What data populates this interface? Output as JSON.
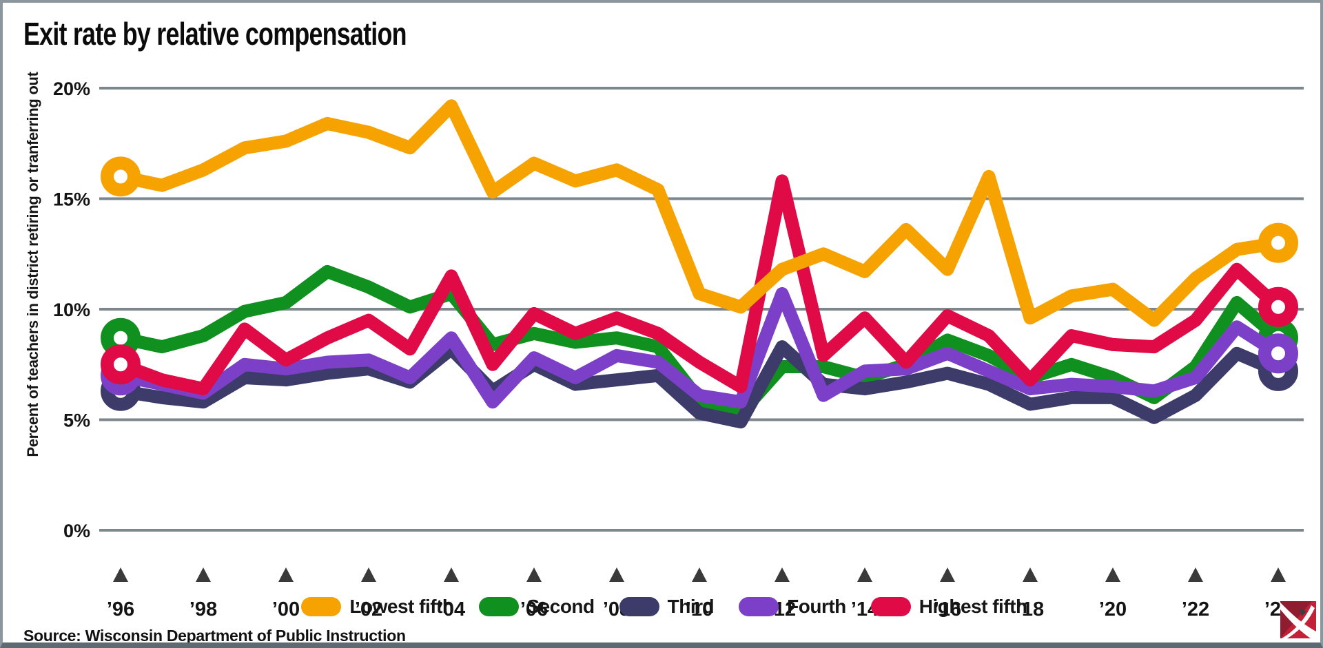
{
  "source": "Source: Wisconsin Department of Public Instruction",
  "colors": {
    "background": "#FFFFFF",
    "grid": "#7B878C",
    "tick_marker": "#3A3A3A",
    "text": "#141414",
    "frame": "#8C979D",
    "frame_bottom": "#5E6A72"
  },
  "legend_labels": [
    "Lowest fifth",
    "Second",
    "Third",
    "Fourth",
    "Highest fifth"
  ],
  "logo": {
    "name": "red-pickaxe-logo",
    "bright_red": "#C42038",
    "dark_red": "#8F1D2F",
    "pick_dark": "#3E3E42",
    "white": "#FFFFFF"
  },
  "chart_data": {
    "type": "line",
    "title": "Exit rate by relative compensation",
    "ylabel": "Percent of teachers in district retiring or tranferring out",
    "xlabel": "",
    "ylim": [
      0,
      20
    ],
    "grid": true,
    "legend_position": "bottom",
    "markers": "open-circle-at-series-endpoints",
    "yticks": [
      {
        "v": 0,
        "label": "0%"
      },
      {
        "v": 5,
        "label": "5%"
      },
      {
        "v": 10,
        "label": "10%"
      },
      {
        "v": 15,
        "label": "15%"
      },
      {
        "v": 20,
        "label": "20%"
      }
    ],
    "x_years": [
      1996,
      1997,
      1998,
      1999,
      2000,
      2001,
      2002,
      2003,
      2004,
      2005,
      2006,
      2007,
      2008,
      2009,
      2010,
      2011,
      2012,
      2013,
      2014,
      2015,
      2016,
      2017,
      2018,
      2019,
      2020,
      2021,
      2022,
      2023,
      2024
    ],
    "xticks": [
      {
        "year": 1996,
        "label": "’96"
      },
      {
        "year": 1998,
        "label": "’98"
      },
      {
        "year": 2000,
        "label": "’00"
      },
      {
        "year": 2002,
        "label": "’02"
      },
      {
        "year": 2004,
        "label": "’04"
      },
      {
        "year": 2006,
        "label": "’06"
      },
      {
        "year": 2008,
        "label": "’08"
      },
      {
        "year": 2010,
        "label": "’10"
      },
      {
        "year": 2012,
        "label": "’12"
      },
      {
        "year": 2014,
        "label": "’14"
      },
      {
        "year": 2016,
        "label": "’16"
      },
      {
        "year": 2018,
        "label": "’18"
      },
      {
        "year": 2020,
        "label": "’20"
      },
      {
        "year": 2022,
        "label": "’22"
      },
      {
        "year": 2024,
        "label": "’24"
      }
    ],
    "series": [
      {
        "name": "Second",
        "color": "#10911F",
        "z": 1,
        "end_rings": true,
        "values": [
          8.7,
          8.3,
          8.8,
          9.9,
          10.3,
          11.7,
          11.0,
          10.1,
          10.7,
          8.4,
          8.9,
          8.5,
          8.7,
          8.3,
          5.9,
          5.3,
          7.4,
          7.4,
          6.9,
          7.5,
          8.6,
          7.9,
          6.9,
          7.5,
          6.9,
          6.0,
          7.4,
          10.3,
          8.7
        ]
      },
      {
        "name": "Third",
        "color": "#3C3B69",
        "z": 2,
        "end_rings": true,
        "values": [
          6.3,
          6.0,
          5.8,
          6.9,
          6.8,
          7.1,
          7.3,
          6.7,
          8.2,
          6.3,
          7.5,
          6.6,
          6.8,
          7.0,
          5.3,
          4.9,
          8.3,
          6.6,
          6.4,
          6.7,
          7.1,
          6.6,
          5.7,
          6.0,
          6.0,
          5.1,
          6.1,
          8.0,
          7.2
        ]
      },
      {
        "name": "Fourth",
        "color": "#7C40C8",
        "z": 3,
        "end_rings": true,
        "values": [
          7.0,
          6.6,
          6.2,
          7.5,
          7.3,
          7.6,
          7.7,
          6.9,
          8.7,
          5.8,
          7.8,
          6.9,
          7.9,
          7.6,
          6.1,
          5.8,
          10.7,
          6.1,
          7.2,
          7.3,
          8.0,
          7.2,
          6.4,
          6.6,
          6.5,
          6.3,
          6.9,
          9.2,
          8.0
        ]
      },
      {
        "name": "Highest fifth",
        "color": "#DF0A46",
        "z": 4,
        "end_rings": true,
        "values": [
          7.5,
          6.8,
          6.4,
          9.1,
          7.7,
          8.7,
          9.5,
          8.2,
          11.5,
          7.5,
          9.8,
          8.9,
          9.6,
          8.9,
          7.6,
          6.5,
          15.8,
          7.9,
          9.6,
          7.6,
          9.7,
          8.8,
          6.8,
          8.8,
          8.4,
          8.3,
          9.5,
          11.8,
          10.1
        ]
      },
      {
        "name": "Lowest fifth",
        "color": "#F6A302",
        "z": 5,
        "end_rings": true,
        "values": [
          16.0,
          15.6,
          16.3,
          17.3,
          17.6,
          18.4,
          18.0,
          17.3,
          19.2,
          15.3,
          16.6,
          15.8,
          16.3,
          15.4,
          10.7,
          10.1,
          11.8,
          12.5,
          11.7,
          13.6,
          11.8,
          16.0,
          9.6,
          10.6,
          10.9,
          9.5,
          11.4,
          12.7,
          13.0
        ]
      }
    ]
  }
}
